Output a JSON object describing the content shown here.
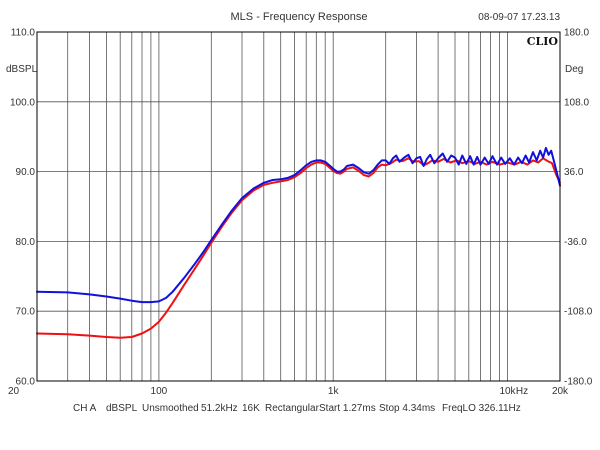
{
  "chart_data": {
    "type": "line",
    "title": "MLS - Frequency Response",
    "timestamp": "08-09-07 17.23.13",
    "logo_text": "CLIO",
    "left_unit": "dBSPL",
    "right_unit": "Deg",
    "x_scale": "log",
    "xlim": [
      20,
      20000
    ],
    "ylim": [
      60,
      110
    ],
    "right_ylim": [
      -180,
      180
    ],
    "grid": true,
    "x_ticks": [
      {
        "value": 20,
        "label": "20"
      },
      {
        "value": 100,
        "label": "100"
      },
      {
        "value": 1000,
        "label": "1k"
      },
      {
        "value": 10000,
        "label": "10k"
      },
      {
        "value": 20000,
        "label": "20k"
      }
    ],
    "x_unit_label": "Hz",
    "y_ticks": [
      {
        "value": 110,
        "label": "110.0"
      },
      {
        "value": 100,
        "label": "100.0"
      },
      {
        "value": 90,
        "label": "90.0"
      },
      {
        "value": 80,
        "label": "80.0"
      },
      {
        "value": 70,
        "label": "70.0"
      },
      {
        "value": 60,
        "label": "60.0"
      }
    ],
    "right_ticks": [
      {
        "value": 180,
        "label": "180.0"
      },
      {
        "value": 108,
        "label": "108.0"
      },
      {
        "value": 36,
        "label": "36.0"
      },
      {
        "value": -36,
        "label": "-36.0"
      },
      {
        "value": -108,
        "label": "-108.0"
      },
      {
        "value": -180,
        "label": "-180.0"
      }
    ],
    "series": [
      {
        "color": "#ee1111",
        "points": [
          [
            20,
            66.8
          ],
          [
            30,
            66.7
          ],
          [
            40,
            66.5
          ],
          [
            50,
            66.3
          ],
          [
            60,
            66.2
          ],
          [
            70,
            66.3
          ],
          [
            80,
            66.8
          ],
          [
            90,
            67.5
          ],
          [
            100,
            68.5
          ],
          [
            110,
            69.8
          ],
          [
            120,
            71.2
          ],
          [
            140,
            73.8
          ],
          [
            160,
            76.0
          ],
          [
            180,
            78.0
          ],
          [
            200,
            79.8
          ],
          [
            230,
            82.1
          ],
          [
            260,
            84.0
          ],
          [
            300,
            85.9
          ],
          [
            350,
            87.3
          ],
          [
            400,
            88.1
          ],
          [
            450,
            88.4
          ],
          [
            500,
            88.6
          ],
          [
            550,
            88.8
          ],
          [
            600,
            89.2
          ],
          [
            650,
            89.8
          ],
          [
            700,
            90.5
          ],
          [
            750,
            91.0
          ],
          [
            800,
            91.3
          ],
          [
            850,
            91.3
          ],
          [
            900,
            91.1
          ],
          [
            950,
            90.6
          ],
          [
            1000,
            90.1
          ],
          [
            1050,
            89.8
          ],
          [
            1100,
            89.7
          ],
          [
            1150,
            90.0
          ],
          [
            1200,
            90.4
          ],
          [
            1300,
            90.6
          ],
          [
            1400,
            90.1
          ],
          [
            1500,
            89.5
          ],
          [
            1600,
            89.3
          ],
          [
            1700,
            89.8
          ],
          [
            1800,
            90.6
          ],
          [
            1900,
            91.0
          ],
          [
            2000,
            90.9
          ],
          [
            2150,
            91.2
          ],
          [
            2300,
            91.7
          ],
          [
            2500,
            91.5
          ],
          [
            2700,
            91.9
          ],
          [
            2900,
            91.4
          ],
          [
            3100,
            91.5
          ],
          [
            3300,
            90.9
          ],
          [
            3500,
            91.2
          ],
          [
            3700,
            91.6
          ],
          [
            4000,
            91.4
          ],
          [
            4300,
            91.8
          ],
          [
            4700,
            91.3
          ],
          [
            5100,
            91.6
          ],
          [
            5500,
            91.2
          ],
          [
            6000,
            91.5
          ],
          [
            6500,
            91.1
          ],
          [
            7000,
            91.4
          ],
          [
            7600,
            91.0
          ],
          [
            8200,
            91.4
          ],
          [
            9000,
            91.0
          ],
          [
            10000,
            91.3
          ],
          [
            11000,
            91.0
          ],
          [
            12000,
            91.4
          ],
          [
            13000,
            91.0
          ],
          [
            14000,
            91.6
          ],
          [
            15000,
            91.3
          ],
          [
            16000,
            91.9
          ],
          [
            17000,
            91.5
          ],
          [
            18000,
            91.2
          ],
          [
            19000,
            89.6
          ],
          [
            20000,
            88.4
          ]
        ]
      },
      {
        "color": "#1111dd",
        "points": [
          [
            20,
            72.8
          ],
          [
            30,
            72.7
          ],
          [
            40,
            72.4
          ],
          [
            50,
            72.1
          ],
          [
            60,
            71.8
          ],
          [
            70,
            71.5
          ],
          [
            80,
            71.3
          ],
          [
            90,
            71.3
          ],
          [
            100,
            71.4
          ],
          [
            110,
            71.9
          ],
          [
            120,
            72.8
          ],
          [
            140,
            74.8
          ],
          [
            160,
            76.7
          ],
          [
            180,
            78.5
          ],
          [
            200,
            80.2
          ],
          [
            230,
            82.4
          ],
          [
            260,
            84.3
          ],
          [
            300,
            86.2
          ],
          [
            350,
            87.6
          ],
          [
            400,
            88.4
          ],
          [
            450,
            88.8
          ],
          [
            500,
            88.9
          ],
          [
            550,
            89.1
          ],
          [
            600,
            89.5
          ],
          [
            650,
            90.2
          ],
          [
            700,
            90.9
          ],
          [
            750,
            91.4
          ],
          [
            800,
            91.6
          ],
          [
            850,
            91.6
          ],
          [
            900,
            91.4
          ],
          [
            950,
            90.9
          ],
          [
            1000,
            90.4
          ],
          [
            1050,
            90.0
          ],
          [
            1100,
            90.0
          ],
          [
            1150,
            90.3
          ],
          [
            1200,
            90.8
          ],
          [
            1300,
            91.0
          ],
          [
            1400,
            90.5
          ],
          [
            1500,
            89.9
          ],
          [
            1600,
            89.7
          ],
          [
            1700,
            90.2
          ],
          [
            1800,
            91.0
          ],
          [
            1900,
            91.6
          ],
          [
            2000,
            91.6
          ],
          [
            2100,
            91.1
          ],
          [
            2200,
            91.9
          ],
          [
            2300,
            92.3
          ],
          [
            2400,
            91.4
          ],
          [
            2550,
            92.0
          ],
          [
            2700,
            92.4
          ],
          [
            2850,
            91.2
          ],
          [
            3000,
            91.9
          ],
          [
            3150,
            92.1
          ],
          [
            3300,
            90.8
          ],
          [
            3450,
            91.8
          ],
          [
            3600,
            92.4
          ],
          [
            3800,
            91.2
          ],
          [
            4000,
            91.9
          ],
          [
            4250,
            92.6
          ],
          [
            4500,
            91.4
          ],
          [
            4750,
            92.3
          ],
          [
            5000,
            92.0
          ],
          [
            5250,
            91.0
          ],
          [
            5500,
            92.3
          ],
          [
            5800,
            91.1
          ],
          [
            6100,
            92.2
          ],
          [
            6400,
            91.0
          ],
          [
            6700,
            92.1
          ],
          [
            7000,
            91.0
          ],
          [
            7400,
            92.0
          ],
          [
            7800,
            91.1
          ],
          [
            8200,
            92.2
          ],
          [
            8700,
            91.0
          ],
          [
            9200,
            92.0
          ],
          [
            9700,
            91.1
          ],
          [
            10300,
            91.9
          ],
          [
            10900,
            91.0
          ],
          [
            11500,
            92.0
          ],
          [
            12100,
            91.2
          ],
          [
            12700,
            92.3
          ],
          [
            13300,
            91.3
          ],
          [
            14000,
            92.8
          ],
          [
            14700,
            91.6
          ],
          [
            15400,
            93.0
          ],
          [
            16000,
            92.0
          ],
          [
            16600,
            93.4
          ],
          [
            17200,
            92.4
          ],
          [
            17800,
            93.0
          ],
          [
            18500,
            91.4
          ],
          [
            19200,
            89.8
          ],
          [
            20000,
            88.0
          ]
        ]
      }
    ]
  },
  "footer": {
    "channel": "CH A",
    "unit": "dBSPL",
    "smoothing": "Unsmoothed",
    "sample_rate": "51.2kHz",
    "size": "16K",
    "window": "Rectangular",
    "start": "Start 1.27ms",
    "stop": "Stop 4.34ms",
    "freq_lo": "FreqLO 326.11Hz"
  }
}
